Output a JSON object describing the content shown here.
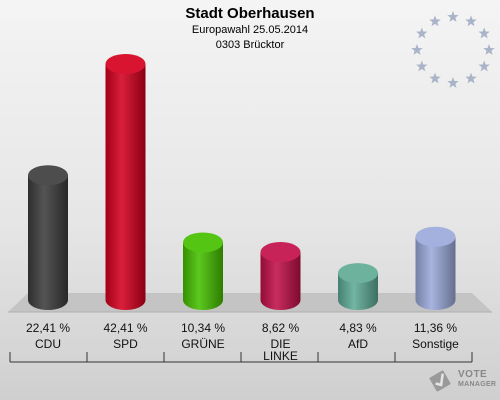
{
  "header": {
    "title": "Stadt Oberhausen",
    "subtitle": "Europawahl 25.05.2014",
    "district": "0303 Brücktor"
  },
  "logo": {
    "line1": "VOTE",
    "line2": "MANAGER"
  },
  "colors": {
    "background": "#e6e6e6",
    "floor": "#c4c4c4",
    "stars": "#a9b4c9"
  },
  "chart_data": {
    "type": "bar",
    "title": "Stadt Oberhausen",
    "subtitle": "Europawahl 25.05.2014",
    "categories": [
      "CDU",
      "SPD",
      "GRÜNE",
      "DIE LINKE",
      "AfD",
      "Sonstige"
    ],
    "values": [
      22.41,
      42.41,
      10.34,
      8.62,
      4.83,
      11.36
    ],
    "value_labels": [
      "22,41 %",
      "42,41 %",
      "10,34 %",
      "8,62 %",
      "4,83 %",
      "11,36 %"
    ],
    "colors": [
      "#3d3d3d",
      "#d5001f",
      "#46c000",
      "#c2104a",
      "#5fab95",
      "#9caadb"
    ],
    "ylim": [
      0,
      42.41
    ],
    "grid": false,
    "legend": "none"
  }
}
